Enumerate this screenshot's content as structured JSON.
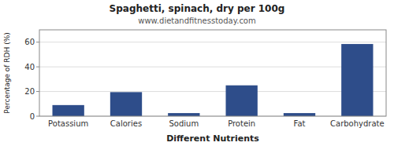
{
  "chart_data": {
    "type": "bar",
    "title": "Spaghetti, spinach, dry per 100g",
    "subtitle": "www.dietandfitnesstoday.com",
    "xlabel": "Different Nutrients",
    "ylabel": "Percentage of RDH (%)",
    "categories": [
      "Potassium",
      "Calories",
      "Sodium",
      "Protein",
      "Fat",
      "Carbohydrate"
    ],
    "values": [
      9,
      19.5,
      2.5,
      25,
      2.5,
      58.5
    ],
    "color": "#2e4d8a",
    "ylim": [
      0,
      70
    ],
    "yticks": [
      0,
      20,
      40,
      60
    ],
    "grid": true
  }
}
